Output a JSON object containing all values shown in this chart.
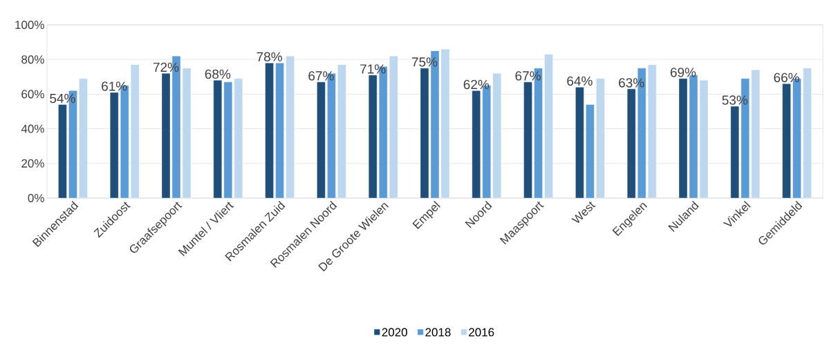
{
  "chart_data": {
    "type": "bar",
    "categories": [
      "Binnenstad",
      "Zuidoost",
      "Graafsepoort",
      "Muntel / Vliert",
      "Rosmalen Zuid",
      "Rosmalen Noord",
      "De Groote Wielen",
      "Empel",
      "Noord",
      "Maaspoort",
      "West",
      "Engelen",
      "Nuland",
      "Vinkel",
      "Gemiddeld"
    ],
    "series": [
      {
        "name": "2020",
        "color": "#1f4e79",
        "values": [
          54,
          61,
          72,
          68,
          78,
          67,
          71,
          75,
          62,
          67,
          64,
          63,
          69,
          53,
          66
        ],
        "value_labels": [
          "54%",
          "61%",
          "72%",
          "68%",
          "78%",
          "67%",
          "71%",
          "75%",
          "62%",
          "67%",
          "64%",
          "63%",
          "69%",
          "53%",
          "66%"
        ]
      },
      {
        "name": "2018",
        "color": "#5b9bd5",
        "values": [
          62,
          65,
          82,
          67,
          78,
          72,
          76,
          85,
          65,
          75,
          54,
          75,
          71,
          69,
          69
        ]
      },
      {
        "name": "2016",
        "color": "#bdd7ee",
        "values": [
          69,
          77,
          75,
          69,
          82,
          77,
          82,
          86,
          72,
          83,
          69,
          77,
          68,
          74,
          75
        ]
      }
    ],
    "ylim": [
      0,
      100
    ],
    "yticks": [
      {
        "value": 0,
        "label": "0%"
      },
      {
        "value": 20,
        "label": "20%"
      },
      {
        "value": 40,
        "label": "40%"
      },
      {
        "value": 60,
        "label": "60%"
      },
      {
        "value": 80,
        "label": "80%"
      },
      {
        "value": 100,
        "label": "100%"
      }
    ],
    "grid": "y",
    "legend": "bottom"
  }
}
